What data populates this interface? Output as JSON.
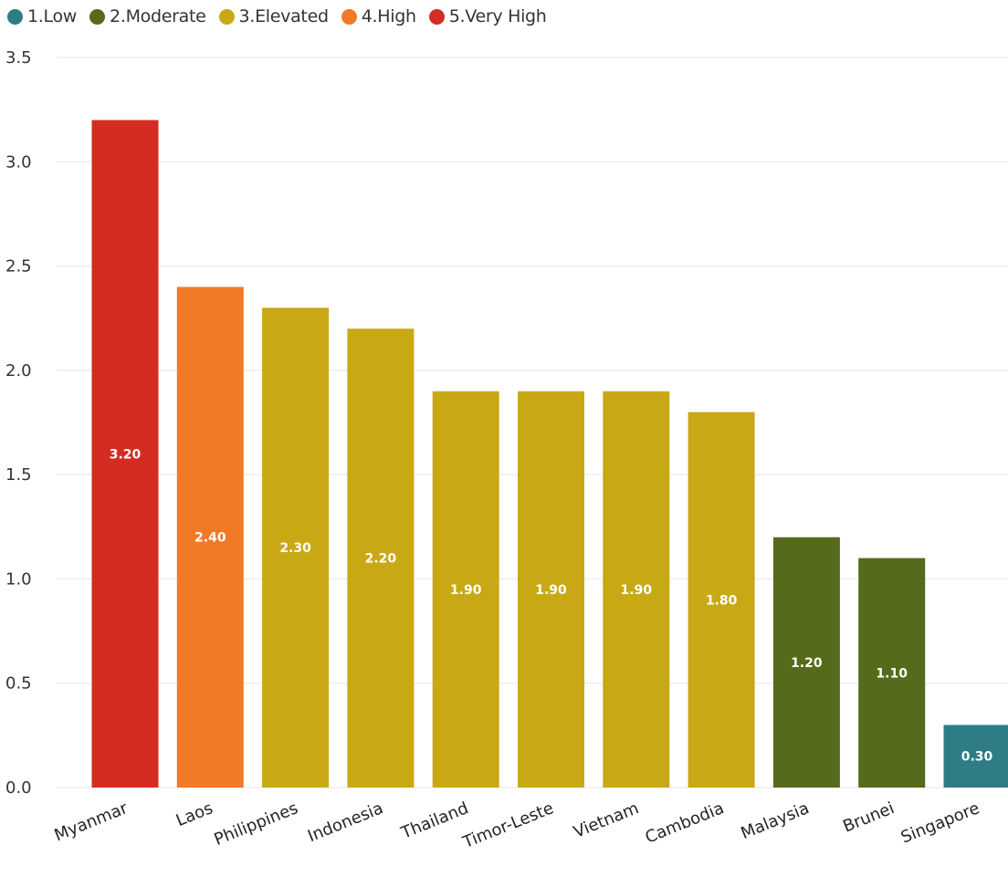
{
  "chart_data": {
    "type": "bar",
    "categories": [
      "Myanmar",
      "Laos",
      "Philippines",
      "Indonesia",
      "Thailand",
      "Timor-Leste",
      "Vietnam",
      "Cambodia",
      "Malaysia",
      "Brunei",
      "Singapore"
    ],
    "values": [
      3.2,
      2.4,
      2.3,
      2.2,
      1.9,
      1.9,
      1.9,
      1.8,
      1.2,
      1.1,
      0.3
    ],
    "value_labels": [
      "3.20",
      "2.40",
      "2.30",
      "2.20",
      "1.90",
      "1.90",
      "1.90",
      "1.80",
      "1.20",
      "1.10",
      "0.30"
    ],
    "risk_level": [
      "5.Very High",
      "4.High",
      "3.Elevated",
      "3.Elevated",
      "3.Elevated",
      "3.Elevated",
      "3.Elevated",
      "3.Elevated",
      "2.Moderate",
      "2.Moderate",
      "1.Low"
    ],
    "legend": [
      {
        "label": "1.Low",
        "color": "#2E7D86"
      },
      {
        "label": "2.Moderate",
        "color": "#556B1B"
      },
      {
        "label": "3.Elevated",
        "color": "#C8A915"
      },
      {
        "label": "4.High",
        "color": "#F07A26"
      },
      {
        "label": "5.Very High",
        "color": "#D42C22"
      }
    ],
    "legend_position": "top-left",
    "yticks": [
      "0.0",
      "0.5",
      "1.0",
      "1.5",
      "2.0",
      "2.5",
      "3.0",
      "3.5"
    ],
    "ylim": [
      0,
      3.5
    ],
    "grid": true,
    "title": "",
    "xlabel": "",
    "ylabel": ""
  }
}
